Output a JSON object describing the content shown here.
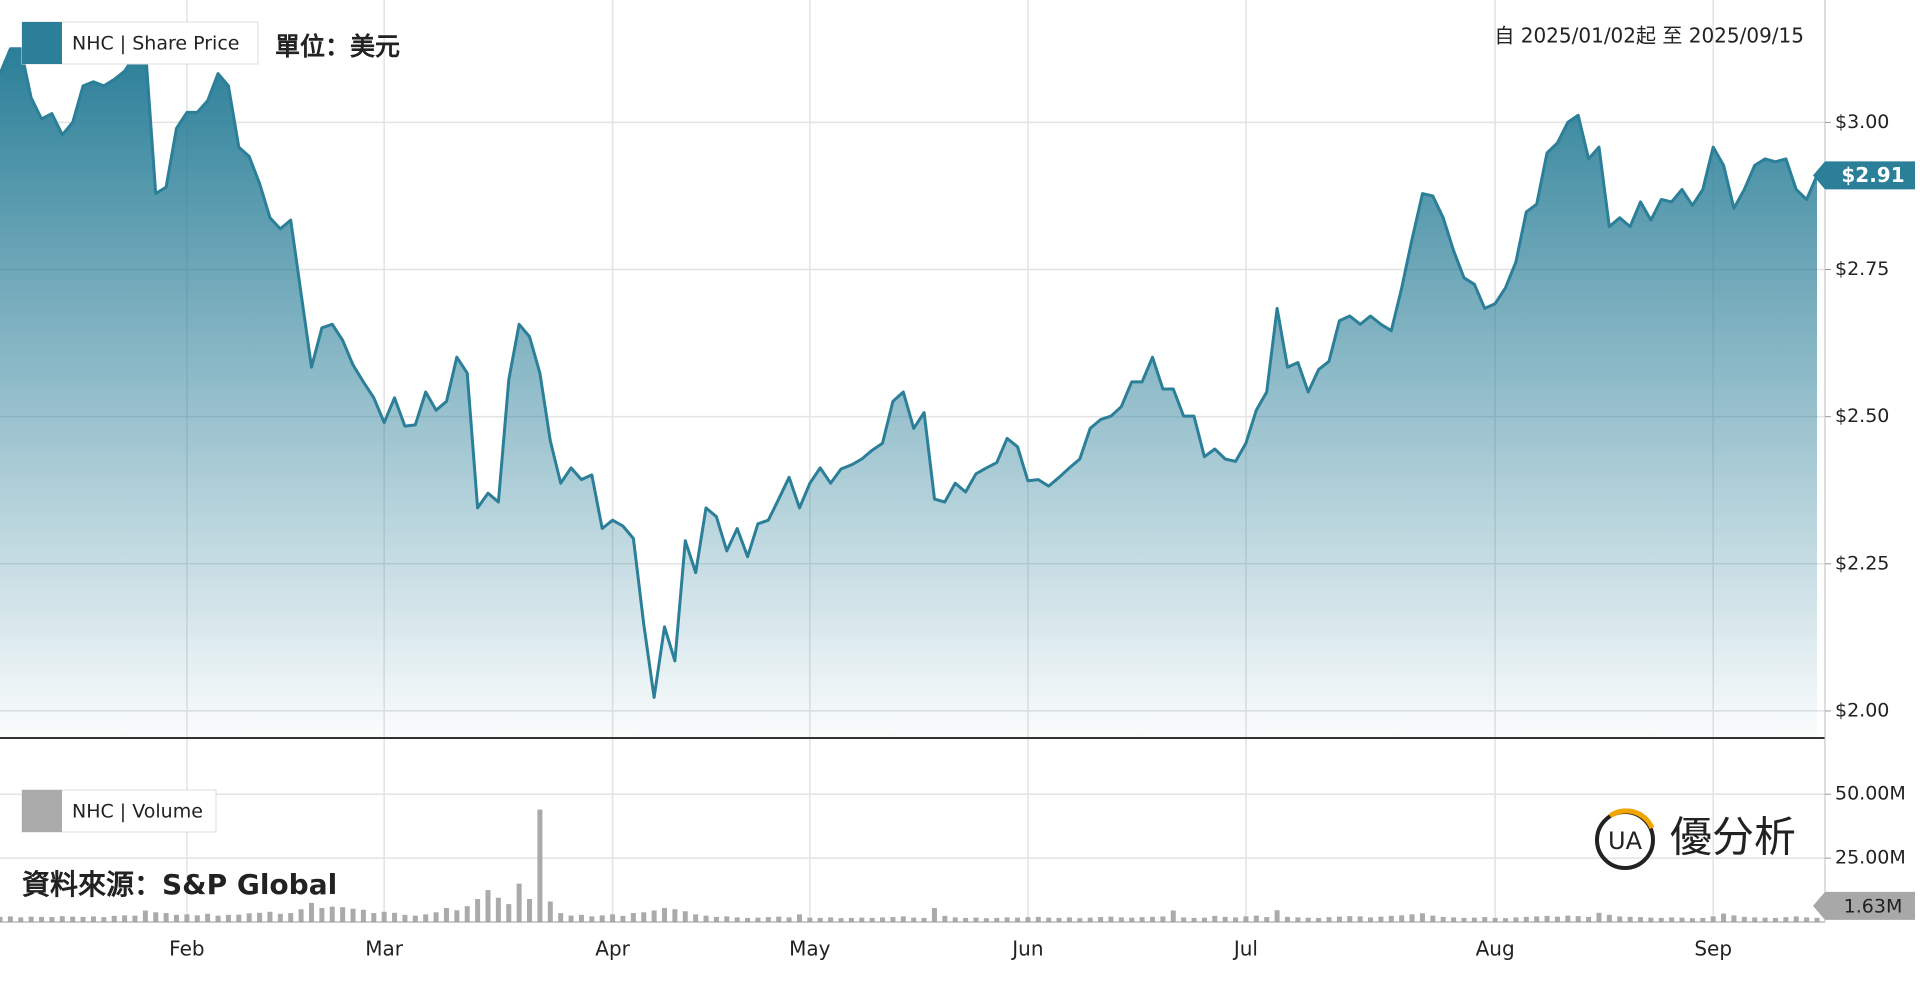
{
  "chart_data": [
    {
      "type": "area",
      "series": [
        {
          "name": "NHC | Share Price",
          "color": "#2b7f98",
          "last_label": "$2.91",
          "values": [
            3.083,
            3.125,
            3.125,
            3.042,
            3.006,
            3.015,
            2.979,
            3.0,
            3.062,
            3.069,
            3.062,
            3.073,
            3.087,
            3.114,
            3.125,
            2.879,
            2.89,
            2.99,
            3.017,
            3.017,
            3.037,
            3.083,
            3.062,
            2.958,
            2.942,
            2.896,
            2.838,
            2.819,
            2.834,
            2.709,
            2.584,
            2.651,
            2.657,
            2.63,
            2.588,
            2.559,
            2.532,
            2.49,
            2.532,
            2.484,
            2.486,
            2.542,
            2.511,
            2.526,
            2.601,
            2.574,
            2.345,
            2.37,
            2.355,
            2.563,
            2.657,
            2.636,
            2.574,
            2.459,
            2.387,
            2.413,
            2.393,
            2.401,
            2.31,
            2.324,
            2.314,
            2.293,
            2.148,
            2.023,
            2.143,
            2.085,
            2.289,
            2.235,
            2.345,
            2.33,
            2.272,
            2.31,
            2.262,
            2.318,
            2.324,
            2.36,
            2.397,
            2.345,
            2.387,
            2.413,
            2.387,
            2.411,
            2.418,
            2.428,
            2.443,
            2.455,
            2.526,
            2.542,
            2.48,
            2.507,
            2.36,
            2.355,
            2.387,
            2.372,
            2.403,
            2.413,
            2.422,
            2.463,
            2.449,
            2.391,
            2.393,
            2.382,
            2.397,
            2.413,
            2.428,
            2.48,
            2.495,
            2.501,
            2.517,
            2.559,
            2.559,
            2.601,
            2.547,
            2.547,
            2.501,
            2.501,
            2.432,
            2.445,
            2.428,
            2.424,
            2.455,
            2.511,
            2.542,
            2.684,
            2.584,
            2.592,
            2.542,
            2.58,
            2.594,
            2.663,
            2.671,
            2.657,
            2.671,
            2.657,
            2.646,
            2.719,
            2.802,
            2.879,
            2.875,
            2.838,
            2.782,
            2.736,
            2.725,
            2.684,
            2.692,
            2.719,
            2.763,
            2.848,
            2.861,
            2.948,
            2.965,
            3.0,
            3.012,
            2.938,
            2.958,
            2.823,
            2.838,
            2.823,
            2.865,
            2.834,
            2.869,
            2.865,
            2.886,
            2.859,
            2.886,
            2.958,
            2.927,
            2.854,
            2.886,
            2.927,
            2.938,
            2.933,
            2.938,
            2.886,
            2.869,
            2.91
          ]
        }
      ],
      "categories": [
        null,
        null,
        null,
        null,
        null,
        null,
        null,
        null,
        null,
        null,
        null,
        null,
        null,
        null,
        null,
        null,
        null,
        null,
        "Feb",
        null,
        null,
        null,
        null,
        null,
        null,
        null,
        null,
        null,
        null,
        null,
        null,
        null,
        null,
        null,
        null,
        null,
        null,
        "Mar",
        null,
        null,
        null,
        null,
        null,
        null,
        null,
        null,
        null,
        null,
        null,
        null,
        null,
        null,
        null,
        null,
        null,
        null,
        null,
        null,
        null,
        "Apr",
        null,
        null,
        null,
        null,
        null,
        null,
        null,
        null,
        null,
        null,
        null,
        null,
        null,
        null,
        null,
        null,
        null,
        null,
        "May",
        null,
        null,
        null,
        null,
        null,
        null,
        null,
        null,
        null,
        null,
        null,
        null,
        null,
        null,
        null,
        null,
        null,
        null,
        null,
        null,
        "Jun",
        null,
        null,
        null,
        null,
        null,
        null,
        null,
        null,
        null,
        null,
        null,
        null,
        null,
        null,
        null,
        null,
        null,
        null,
        null,
        null,
        "Jul",
        null,
        null,
        null,
        null,
        null,
        null,
        null,
        null,
        null,
        null,
        null,
        null,
        null,
        null,
        null,
        null,
        null,
        null,
        null,
        null,
        null,
        null,
        null,
        "Aug",
        null,
        null,
        null,
        null,
        null,
        null,
        null,
        null,
        null,
        null,
        null,
        null,
        null,
        null,
        null,
        null,
        null,
        null,
        null,
        null,
        "Sep",
        null,
        null,
        null,
        null,
        null,
        null,
        null,
        null,
        null,
        null
      ],
      "ylim": [
        1.954,
        3.208
      ],
      "yticks": [
        {
          "value": 2,
          "label": "$2.00"
        },
        {
          "value": 2.25,
          "label": "$2.25"
        },
        {
          "value": 2.5,
          "label": "$2.50"
        },
        {
          "value": 2.75,
          "label": "$2.75"
        },
        {
          "value": 3,
          "label": "$3.00"
        }
      ],
      "grid": true
    },
    {
      "type": "bar",
      "series": [
        {
          "name": "NHC | Volume",
          "color": "#aaaaaa",
          "last_label": "1.63M",
          "values": [
            2.0,
            2.2,
            1.8,
            2.1,
            2.0,
            1.9,
            2.3,
            2.1,
            2.0,
            2.2,
            1.9,
            2.4,
            2.6,
            2.5,
            4.5,
            3.8,
            3.5,
            2.8,
            3.0,
            2.6,
            3.2,
            2.5,
            2.8,
            2.9,
            3.4,
            3.6,
            4.0,
            3.2,
            3.5,
            5.0,
            7.5,
            5.5,
            6.0,
            5.8,
            5.2,
            4.8,
            3.5,
            4.0,
            3.6,
            2.8,
            2.5,
            3.0,
            3.8,
            5.5,
            4.6,
            6.2,
            9.0,
            12.5,
            9.5,
            7.0,
            15.0,
            9.0,
            44.0,
            8.0,
            3.5,
            2.5,
            2.8,
            2.2,
            2.6,
            3.0,
            2.4,
            3.5,
            3.8,
            4.5,
            5.5,
            5.0,
            4.2,
            3.0,
            2.5,
            2.0,
            2.2,
            1.8,
            1.6,
            1.7,
            1.9,
            2.1,
            1.8,
            3.0,
            1.7,
            1.6,
            1.8,
            1.5,
            1.6,
            1.7,
            1.6,
            1.8,
            1.9,
            2.2,
            1.7,
            1.6,
            5.5,
            2.4,
            1.8,
            1.6,
            1.7,
            1.5,
            1.6,
            1.8,
            1.7,
            1.9,
            2.0,
            1.7,
            1.6,
            1.8,
            1.5,
            1.7,
            1.9,
            2.1,
            1.8,
            1.7,
            1.9,
            2.0,
            2.2,
            4.5,
            1.8,
            1.6,
            1.7,
            2.4,
            2.0,
            1.8,
            2.2,
            2.5,
            1.9,
            4.6,
            2.0,
            1.8,
            1.7,
            1.6,
            1.9,
            2.1,
            2.3,
            2.2,
            1.8,
            2.1,
            2.4,
            2.6,
            3.0,
            3.4,
            2.5,
            2.0,
            1.8,
            1.6,
            1.7,
            1.9,
            1.6,
            1.5,
            1.8,
            2.0,
            2.2,
            2.4,
            2.1,
            2.5,
            2.3,
            2.0,
            3.6,
            2.8,
            2.2,
            2.0,
            1.9,
            1.7,
            1.6,
            1.8,
            1.7,
            1.5,
            1.6,
            2.2,
            3.3,
            2.6,
            2.0,
            1.8,
            1.7,
            1.6,
            1.9,
            2.2,
            1.8,
            1.63
          ]
        }
      ],
      "ylim": [
        0,
        72
      ],
      "yticks": [
        {
          "value": 25,
          "label": "25.00M"
        },
        {
          "value": 50,
          "label": "50.00M"
        }
      ],
      "grid": true
    }
  ],
  "unit": "單位：美元",
  "date_range": "自 2025/01/02起 至 2025/09/15",
  "source": "資料來源：S&P Global",
  "brand": {
    "mark": "UA",
    "name": "優分析"
  }
}
